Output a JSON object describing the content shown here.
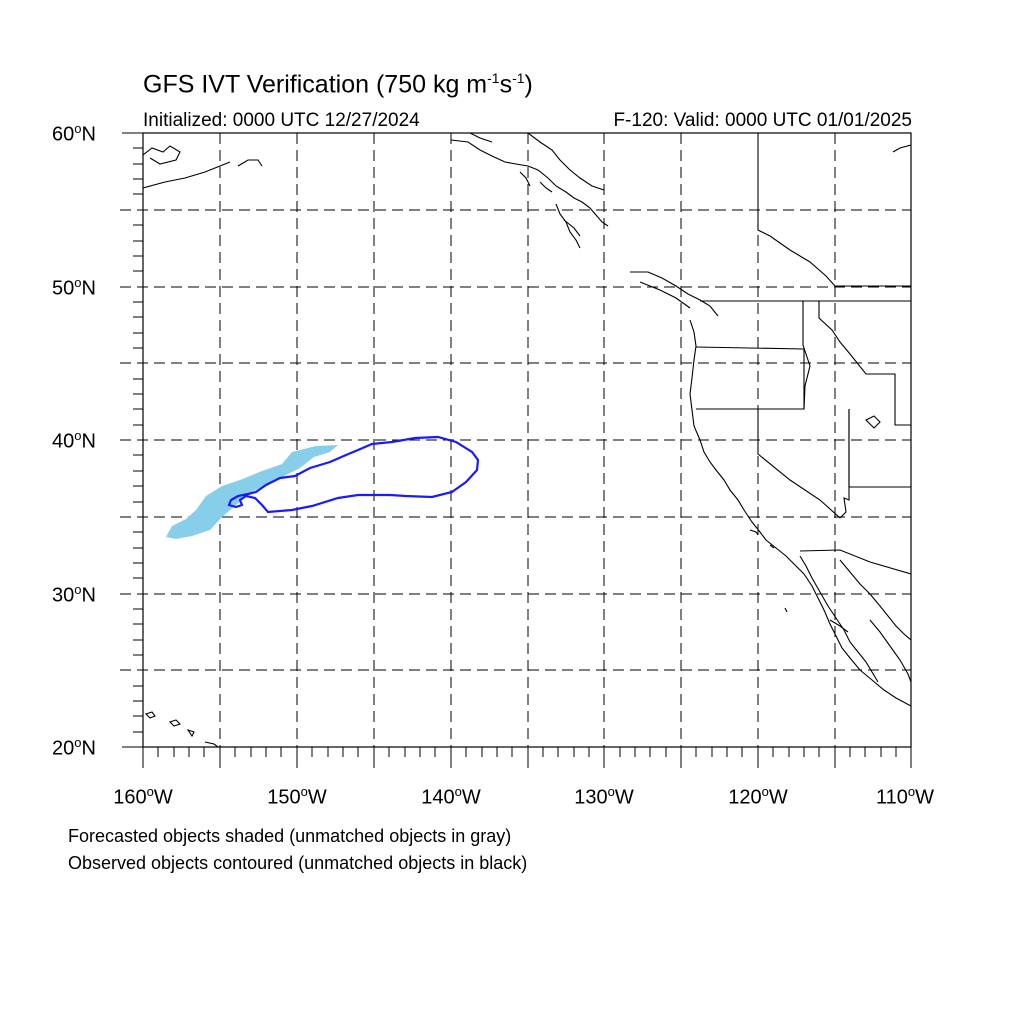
{
  "title": {
    "prefix": "GFS IVT Verification (750 kg m",
    "sup1": "-1",
    "mid": "s",
    "sup2": "-1",
    "suffix": ")"
  },
  "initialized": "Initialized: 0000 UTC 12/27/2024",
  "valid": "F-120: Valid: 0000 UTC 01/01/2025",
  "lat_labels": [
    {
      "value": "60",
      "suffix": "N"
    },
    {
      "value": "50",
      "suffix": "N"
    },
    {
      "value": "40",
      "suffix": "N"
    },
    {
      "value": "30",
      "suffix": "N"
    },
    {
      "value": "20",
      "suffix": "N"
    }
  ],
  "lon_labels": [
    {
      "value": "160",
      "suffix": "W"
    },
    {
      "value": "150",
      "suffix": "W"
    },
    {
      "value": "140",
      "suffix": "W"
    },
    {
      "value": "130",
      "suffix": "W"
    },
    {
      "value": "120",
      "suffix": "W"
    },
    {
      "value": "110",
      "suffix": "W"
    }
  ],
  "notes": [
    "Forecasted objects shaded (unmatched objects in gray)",
    "Observed objects contoured (unmatched objects in black)"
  ],
  "colors": {
    "forecast_fill": "#87ceeb",
    "observed_contour": "#1a1aff",
    "coast": "#000000",
    "grid": "#000000"
  }
}
